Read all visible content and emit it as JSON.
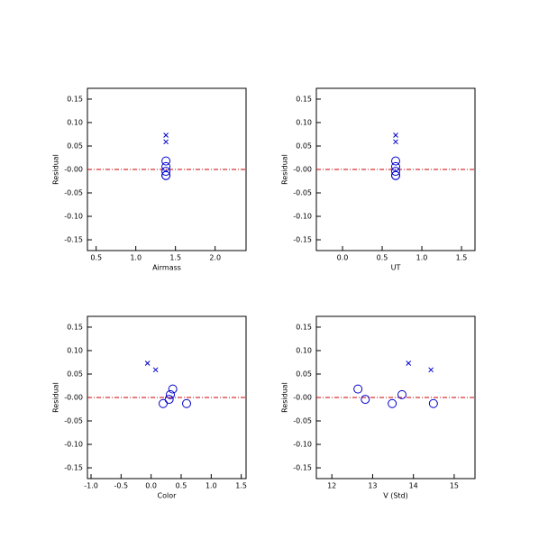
{
  "chart_data": [
    {
      "type": "scatter",
      "xlabel": "Airmass",
      "ylabel": "Residual",
      "xlim": [
        0.39,
        2.39
      ],
      "xticks": [
        0.5,
        {
          "value": 1,
          "label": "1.0"
        },
        1.5,
        {
          "value": 2,
          "label": "2.0"
        }
      ],
      "ylim": [
        -0.173,
        0.173
      ],
      "yticks": [
        0.15,
        {
          "value": 0.1,
          "label": "0.10"
        },
        0.05,
        {
          "value": 0,
          "label": "-0.00"
        },
        -0.05,
        {
          "value": -0.1,
          "label": "-0.10"
        },
        -0.15
      ],
      "hline": {
        "value": 0,
        "color": "#cc0000"
      },
      "series": [
        {
          "marker": "o",
          "color": "#0000cc",
          "x": [
            1.38,
            1.38,
            1.38,
            1.38,
            1.38
          ],
          "values": [
            0.018,
            -0.004,
            -0.013,
            0.006,
            -0.013
          ]
        },
        {
          "marker": "x",
          "color": "#0000cc",
          "x": [
            1.38,
            1.38
          ],
          "values": [
            0.073,
            0.059
          ]
        }
      ]
    },
    {
      "type": "scatter",
      "xlabel": "UT",
      "ylabel": "Residual",
      "xlim": [
        -0.33,
        1.67
      ],
      "xticks": [
        {
          "value": 0,
          "label": "0.0"
        },
        0.5,
        {
          "value": 1,
          "label": "1.0"
        },
        1.5
      ],
      "ylim": [
        -0.173,
        0.173
      ],
      "yticks": [
        0.15,
        {
          "value": 0.1,
          "label": "0.10"
        },
        0.05,
        {
          "value": 0,
          "label": "-0.00"
        },
        -0.05,
        {
          "value": -0.1,
          "label": "-0.10"
        },
        -0.15
      ],
      "hline": {
        "value": 0,
        "color": "#cc0000"
      },
      "series": [
        {
          "marker": "o",
          "color": "#0000cc",
          "x": [
            0.67,
            0.67,
            0.67,
            0.67,
            0.67
          ],
          "values": [
            0.018,
            -0.004,
            -0.013,
            0.006,
            -0.013
          ]
        },
        {
          "marker": "x",
          "color": "#0000cc",
          "x": [
            0.67,
            0.67
          ],
          "values": [
            0.073,
            0.059
          ]
        }
      ]
    },
    {
      "type": "scatter",
      "xlabel": "Color",
      "ylabel": "Residual",
      "xlim": [
        -1.06,
        1.58
      ],
      "xticks": [
        {
          "value": -1,
          "label": "-1.0"
        },
        -0.5,
        {
          "value": 0,
          "label": "0.0"
        },
        0.5,
        {
          "value": 1,
          "label": "1.0"
        },
        1.5
      ],
      "ylim": [
        -0.173,
        0.173
      ],
      "yticks": [
        0.15,
        {
          "value": 0.1,
          "label": "0.10"
        },
        0.05,
        {
          "value": 0,
          "label": "-0.00"
        },
        -0.05,
        {
          "value": -0.1,
          "label": "-0.10"
        },
        -0.15
      ],
      "hline": {
        "value": 0,
        "color": "#cc0000"
      },
      "series": [
        {
          "marker": "o",
          "color": "#0000cc",
          "x": [
            0.36,
            0.3,
            0.2,
            0.32,
            0.59
          ],
          "values": [
            0.018,
            -0.004,
            -0.013,
            0.006,
            -0.013
          ]
        },
        {
          "marker": "x",
          "color": "#0000cc",
          "x": [
            -0.06,
            0.075
          ],
          "values": [
            0.073,
            0.059
          ]
        }
      ]
    },
    {
      "type": "scatter",
      "xlabel": "V (Std)",
      "ylabel": "Residual",
      "xlim": [
        11.62,
        15.51
      ],
      "xticks": [
        12,
        13,
        14,
        15
      ],
      "ylim": [
        -0.173,
        0.173
      ],
      "yticks": [
        0.15,
        {
          "value": 0.1,
          "label": "0.10"
        },
        0.05,
        {
          "value": 0,
          "label": "-0.00"
        },
        -0.05,
        {
          "value": -0.1,
          "label": "-0.10"
        },
        -0.15
      ],
      "hline": {
        "value": 0,
        "color": "#cc0000"
      },
      "series": [
        {
          "marker": "o",
          "color": "#0000cc",
          "x": [
            12.64,
            12.82,
            13.48,
            13.72,
            14.49
          ],
          "values": [
            0.018,
            -0.004,
            -0.013,
            0.006,
            -0.013
          ]
        },
        {
          "marker": "x",
          "color": "#0000cc",
          "x": [
            13.88,
            14.43
          ],
          "values": [
            0.073,
            0.059
          ]
        }
      ]
    }
  ]
}
